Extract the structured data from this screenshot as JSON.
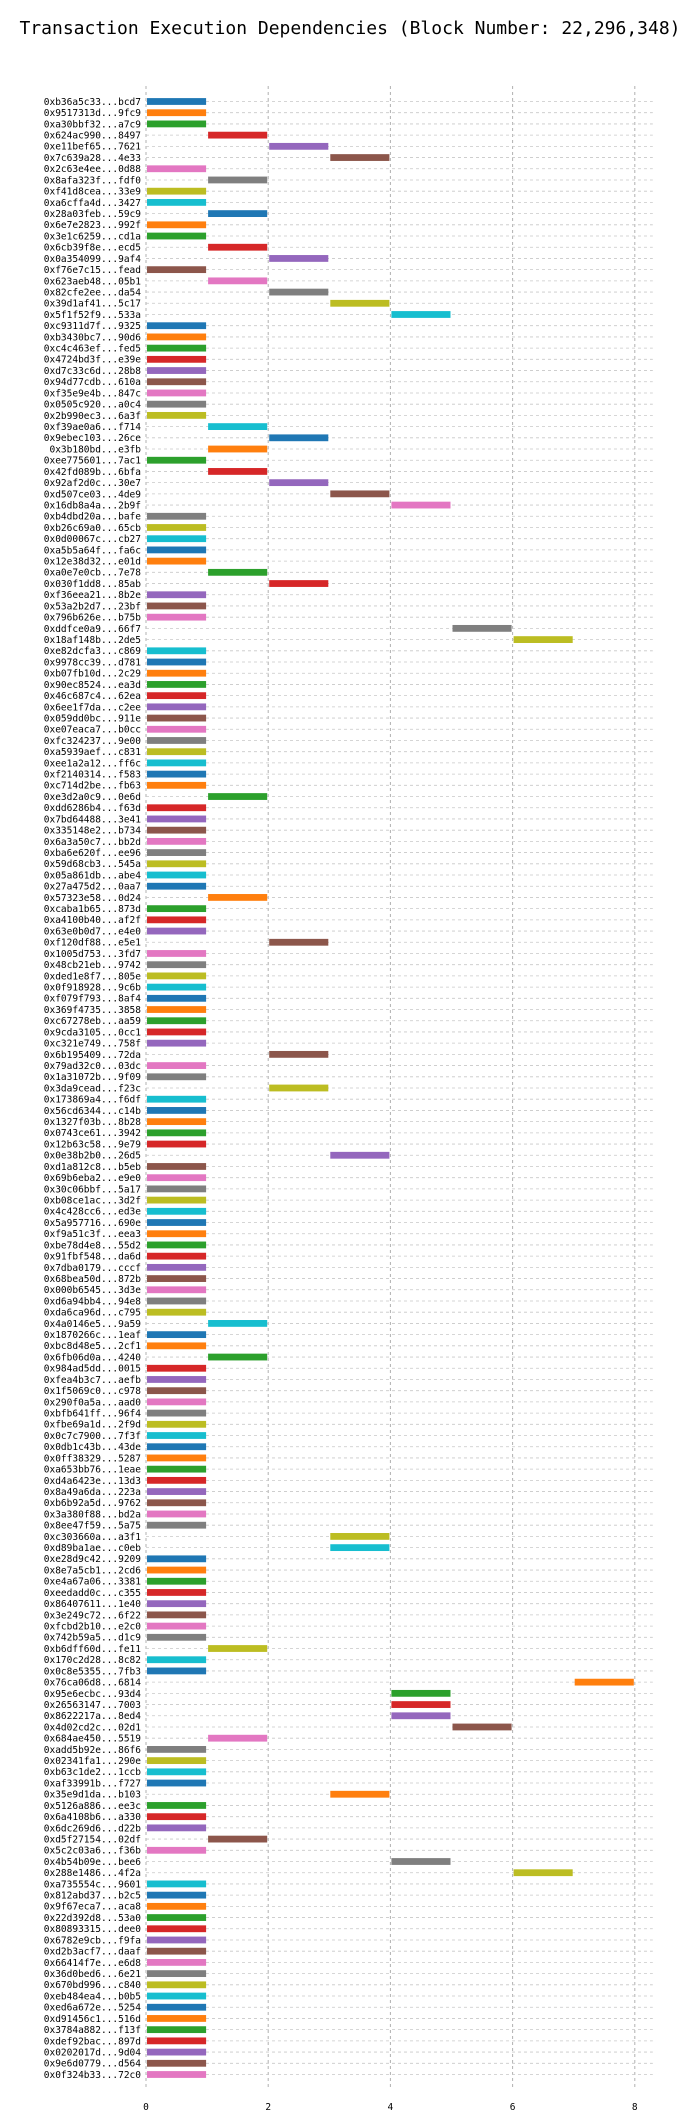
{
  "chart_data": {
    "type": "gantt-bar",
    "title": "Transaction Execution Dependencies (Block Number: 22,296,348)",
    "xlabel": "",
    "ylabel": "",
    "xlim": [
      0,
      8
    ],
    "xticks": [
      0,
      2,
      4,
      6,
      8
    ],
    "grid": true,
    "legend": "none",
    "palette": [
      "#1f77b4",
      "#ff7f0e",
      "#2ca02c",
      "#d62728",
      "#9467bd",
      "#8c564b",
      "#e377c2",
      "#7f7f7f",
      "#bcbd22",
      "#17becf"
    ],
    "transactions": [
      {
        "label": "0xb36a5c33...bcd7",
        "start": 0
      },
      {
        "label": "0x9517313d...9fc9",
        "start": 0
      },
      {
        "label": "0xa30bbf32...a7c9",
        "start": 0
      },
      {
        "label": "0x624ac990...8497",
        "start": 1
      },
      {
        "label": "0xe11bef65...7621",
        "start": 2
      },
      {
        "label": "0x7c639a28...4e33",
        "start": 3
      },
      {
        "label": "0x2c63e4ee...0d88",
        "start": 0
      },
      {
        "label": "0x8afa323f...fdf0",
        "start": 1
      },
      {
        "label": "0xf41d8cea...33e9",
        "start": 0
      },
      {
        "label": "0xa6cffa4d...3427",
        "start": 0
      },
      {
        "label": "0x28a03feb...59c9",
        "start": 1
      },
      {
        "label": "0x6e7e2823...992f",
        "start": 0
      },
      {
        "label": "0x3e1c6259...cd1a",
        "start": 0
      },
      {
        "label": "0x6cb39f8e...ecd5",
        "start": 1
      },
      {
        "label": "0x0a354099...9af4",
        "start": 2
      },
      {
        "label": "0xf76e7c15...fead",
        "start": 0
      },
      {
        "label": "0x623aeb48...05b1",
        "start": 1
      },
      {
        "label": "0x82cfe2ee...da54",
        "start": 2
      },
      {
        "label": "0x39d1af41...5c17",
        "start": 3
      },
      {
        "label": "0x5f1f52f9...533a",
        "start": 4
      },
      {
        "label": "0xc9311d7f...9325",
        "start": 0
      },
      {
        "label": "0xb3430bc7...90d6",
        "start": 0
      },
      {
        "label": "0xc4c463ef...fed5",
        "start": 0
      },
      {
        "label": "0x4724bd3f...e39e",
        "start": 0
      },
      {
        "label": "0xd7c33c6d...28b8",
        "start": 0
      },
      {
        "label": "0x94d77cdb...610a",
        "start": 0
      },
      {
        "label": "0xf35e9e4b...847c",
        "start": 0
      },
      {
        "label": "0x0505c920...a0c4",
        "start": 0
      },
      {
        "label": "0x2b990ec3...6a3f",
        "start": 0
      },
      {
        "label": "0xf39ae0a6...f714",
        "start": 1
      },
      {
        "label": "0x9ebec103...26ce",
        "start": 2
      },
      {
        "label": "0x3b180bd...e3fb",
        "start": 1
      },
      {
        "label": "0xee775601...7ac1",
        "start": 0
      },
      {
        "label": "0x42fd089b...6bfa",
        "start": 1
      },
      {
        "label": "0x92af2d0c...30e7",
        "start": 2
      },
      {
        "label": "0xd507ce03...4de9",
        "start": 3
      },
      {
        "label": "0x16db8a4a...2b9f",
        "start": 4
      },
      {
        "label": "0xb4dbd20a...bafe",
        "start": 0
      },
      {
        "label": "0xb26c69a0...65cb",
        "start": 0
      },
      {
        "label": "0x0d00067c...cb27",
        "start": 0
      },
      {
        "label": "0xa5b5a64f...fa6c",
        "start": 0
      },
      {
        "label": "0x12e38d32...e01d",
        "start": 0
      },
      {
        "label": "0xa0e7e0cb...7e78",
        "start": 1
      },
      {
        "label": "0x030f1dd8...85ab",
        "start": 2
      },
      {
        "label": "0xf36eea21...8b2e",
        "start": 0
      },
      {
        "label": "0x53a2b2d7...23bf",
        "start": 0
      },
      {
        "label": "0x796b626e...b75b",
        "start": 0
      },
      {
        "label": "0xddfce0a9...66f7",
        "start": 5
      },
      {
        "label": "0x18af148b...2de5",
        "start": 6
      },
      {
        "label": "0xe82dcfa3...c869",
        "start": 0
      },
      {
        "label": "0x9978cc39...d781",
        "start": 0
      },
      {
        "label": "0xb07fb10d...2c29",
        "start": 0
      },
      {
        "label": "0x90ec8524...ea3d",
        "start": 0
      },
      {
        "label": "0x46c687c4...62ea",
        "start": 0
      },
      {
        "label": "0x6ee1f7da...c2ee",
        "start": 0
      },
      {
        "label": "0x059dd0bc...911e",
        "start": 0
      },
      {
        "label": "0xe07eaca7...b0cc",
        "start": 0
      },
      {
        "label": "0xfc324237...9e00",
        "start": 0
      },
      {
        "label": "0xa5939aef...c831",
        "start": 0
      },
      {
        "label": "0xee1a2a12...ff6c",
        "start": 0
      },
      {
        "label": "0xf2140314...f583",
        "start": 0
      },
      {
        "label": "0xc714d2be...fb63",
        "start": 0
      },
      {
        "label": "0xe3d2a0c9...0e6d",
        "start": 1
      },
      {
        "label": "0xdd6286b4...f63d",
        "start": 0
      },
      {
        "label": "0x7bd64488...3e41",
        "start": 0
      },
      {
        "label": "0x335148e2...b734",
        "start": 0
      },
      {
        "label": "0x6a3a50c7...bb2d",
        "start": 0
      },
      {
        "label": "0xba6e620f...ee96",
        "start": 0
      },
      {
        "label": "0x59d68cb3...545a",
        "start": 0
      },
      {
        "label": "0x05a861db...abe4",
        "start": 0
      },
      {
        "label": "0x27a475d2...0aa7",
        "start": 0
      },
      {
        "label": "0x57323e58...0d24",
        "start": 1
      },
      {
        "label": "0xcaba1b65...873d",
        "start": 0
      },
      {
        "label": "0xa4100b40...af2f",
        "start": 0
      },
      {
        "label": "0x63e0b0d7...e4e0",
        "start": 0
      },
      {
        "label": "0xf120df88...e5e1",
        "start": 2
      },
      {
        "label": "0x1005d753...3fd7",
        "start": 0
      },
      {
        "label": "0x48cb21eb...9742",
        "start": 0
      },
      {
        "label": "0xded1e8f7...805e",
        "start": 0
      },
      {
        "label": "0x0f918928...9c6b",
        "start": 0
      },
      {
        "label": "0xf079f793...8af4",
        "start": 0
      },
      {
        "label": "0x369f4735...3858",
        "start": 0
      },
      {
        "label": "0xc67278eb...aa59",
        "start": 0
      },
      {
        "label": "0x9cda3105...0cc1",
        "start": 0
      },
      {
        "label": "0xc321e749...758f",
        "start": 0
      },
      {
        "label": "0x6b195409...72da",
        "start": 2
      },
      {
        "label": "0x79ad32c0...03dc",
        "start": 0
      },
      {
        "label": "0x1a31072b...9f09",
        "start": 0
      },
      {
        "label": "0x3da9cead...f23c",
        "start": 2
      },
      {
        "label": "0x173869a4...f6df",
        "start": 0
      },
      {
        "label": "0x56cd6344...c14b",
        "start": 0
      },
      {
        "label": "0x1327f03b...8b28",
        "start": 0
      },
      {
        "label": "0x0743ce61...3942",
        "start": 0
      },
      {
        "label": "0x12b63c58...9e79",
        "start": 0
      },
      {
        "label": "0x0e38b2b0...26d5",
        "start": 3
      },
      {
        "label": "0xd1a812c8...b5eb",
        "start": 0
      },
      {
        "label": "0x69b6eba2...e9e0",
        "start": 0
      },
      {
        "label": "0x30c06bbf...5a17",
        "start": 0
      },
      {
        "label": "0xb08ce1ac...3d2f",
        "start": 0
      },
      {
        "label": "0x4c428cc6...ed3e",
        "start": 0
      },
      {
        "label": "0x5a957716...690e",
        "start": 0
      },
      {
        "label": "0xf9a51c3f...eea3",
        "start": 0
      },
      {
        "label": "0xbe78d4e8...55d2",
        "start": 0
      },
      {
        "label": "0x91fbf548...da6d",
        "start": 0
      },
      {
        "label": "0x7dba0179...cccf",
        "start": 0
      },
      {
        "label": "0x68bea50d...872b",
        "start": 0
      },
      {
        "label": "0x000b6545...3d3e",
        "start": 0
      },
      {
        "label": "0xd6a94bb4...94e8",
        "start": 0
      },
      {
        "label": "0xda6ca96d...c795",
        "start": 0
      },
      {
        "label": "0x4a0146e5...9a59",
        "start": 1
      },
      {
        "label": "0x1870266c...1eaf",
        "start": 0
      },
      {
        "label": "0xbc8d48e5...2cf1",
        "start": 0
      },
      {
        "label": "0x6fb06d0a...4240",
        "start": 1
      },
      {
        "label": "0x984ad5dd...0015",
        "start": 0
      },
      {
        "label": "0xfea4b3c7...aefb",
        "start": 0
      },
      {
        "label": "0x1f5069c0...c978",
        "start": 0
      },
      {
        "label": "0x290f0a5a...aad0",
        "start": 0
      },
      {
        "label": "0xbfb641ff...96f4",
        "start": 0
      },
      {
        "label": "0xfbe69a1d...2f9d",
        "start": 0
      },
      {
        "label": "0x0c7c7900...7f3f",
        "start": 0
      },
      {
        "label": "0x0db1c43b...43de",
        "start": 0
      },
      {
        "label": "0x0ff38329...5287",
        "start": 0
      },
      {
        "label": "0xa653bb76...1eae",
        "start": 0
      },
      {
        "label": "0xd4a6423e...13d3",
        "start": 0
      },
      {
        "label": "0x8a49a6da...223a",
        "start": 0
      },
      {
        "label": "0xb6b92a5d...9762",
        "start": 0
      },
      {
        "label": "0x3a380f88...bd2a",
        "start": 0
      },
      {
        "label": "0x8ee47f59...5a75",
        "start": 0
      },
      {
        "label": "0xc303660a...a3f1",
        "start": 3
      },
      {
        "label": "0xd89ba1ae...c0eb",
        "start": 3
      },
      {
        "label": "0xe28d9c42...9209",
        "start": 0
      },
      {
        "label": "0x8e7a5cb1...2cd6",
        "start": 0
      },
      {
        "label": "0xe4a67a06...3381",
        "start": 0
      },
      {
        "label": "0xeedadd0c...c355",
        "start": 0
      },
      {
        "label": "0x86407611...1e40",
        "start": 0
      },
      {
        "label": "0x3e249c72...6f22",
        "start": 0
      },
      {
        "label": "0xfcbd2b10...e2c0",
        "start": 0
      },
      {
        "label": "0x742b59a5...d1c9",
        "start": 0
      },
      {
        "label": "0xb6dff60d...fe11",
        "start": 1
      },
      {
        "label": "0x170c2d28...8c82",
        "start": 0
      },
      {
        "label": "0x0c8e5355...7fb3",
        "start": 0
      },
      {
        "label": "0x76ca06d8...6814",
        "start": 7
      },
      {
        "label": "0x95e6ecbc...93d4",
        "start": 4
      },
      {
        "label": "0x26563147...7003",
        "start": 4
      },
      {
        "label": "0x8622217a...8ed4",
        "start": 4
      },
      {
        "label": "0x4d02cd2c...02d1",
        "start": 5
      },
      {
        "label": "0x684ae450...5519",
        "start": 1
      },
      {
        "label": "0xadd5b92e...86f6",
        "start": 0
      },
      {
        "label": "0x02341fa1...290e",
        "start": 0
      },
      {
        "label": "0xb63c1de2...1ccb",
        "start": 0
      },
      {
        "label": "0xaf33991b...f727",
        "start": 0
      },
      {
        "label": "0x35e9d1da...b103",
        "start": 3
      },
      {
        "label": "0x5126a886...ee3c",
        "start": 0
      },
      {
        "label": "0x6a4108b6...a330",
        "start": 0
      },
      {
        "label": "0x6dc269d6...d22b",
        "start": 0
      },
      {
        "label": "0xd5f27154...02df",
        "start": 1
      },
      {
        "label": "0x5c2c03a6...f36b",
        "start": 0
      },
      {
        "label": "0x4b54b09e...bee6",
        "start": 4
      },
      {
        "label": "0x288e1486...4f2a",
        "start": 6
      },
      {
        "label": "0xa735554c...9601",
        "start": 0
      },
      {
        "label": "0x812abd37...b2c5",
        "start": 0
      },
      {
        "label": "0x9f67eca7...aca8",
        "start": 0
      },
      {
        "label": "0x22d392d8...53a0",
        "start": 0
      },
      {
        "label": "0x80893315...dee0",
        "start": 0
      },
      {
        "label": "0x6782e9cb...f9fa",
        "start": 0
      },
      {
        "label": "0xd2b3acf7...daaf",
        "start": 0
      },
      {
        "label": "0x66414f7e...e6d8",
        "start": 0
      },
      {
        "label": "0x36d0bed6...6e21",
        "start": 0
      },
      {
        "label": "0x670bd996...c840",
        "start": 0
      },
      {
        "label": "0xeb484ea4...b0b5",
        "start": 0
      },
      {
        "label": "0xed6a672e...5254",
        "start": 0
      },
      {
        "label": "0xd91456c1...516d",
        "start": 0
      },
      {
        "label": "0x3784a882...f13f",
        "start": 0
      },
      {
        "label": "0xdef92bac...897d",
        "start": 0
      },
      {
        "label": "0x0202017d...9d04",
        "start": 0
      },
      {
        "label": "0x9e6d0779...d564",
        "start": 0
      },
      {
        "label": "0x0f324b33...72c0",
        "start": 0
      }
    ]
  }
}
